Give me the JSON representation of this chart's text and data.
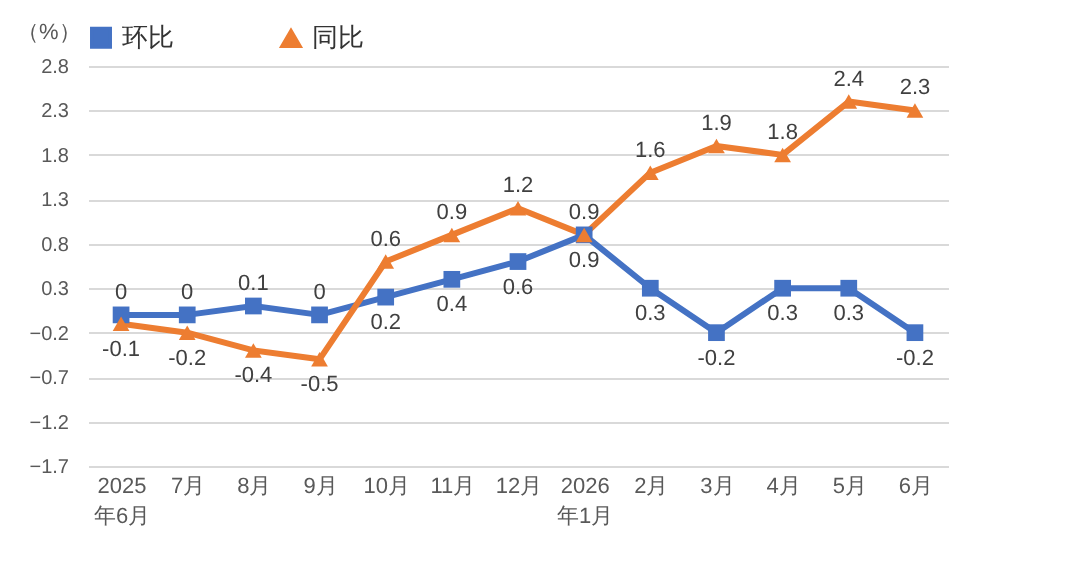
{
  "chart_data": {
    "type": "line",
    "ylabel": "（%）",
    "categories": [
      "2025\n年6月",
      "7月",
      "8月",
      "9月",
      "10月",
      "11月",
      "12月",
      "2026\n年1月",
      "2月",
      "3月",
      "4月",
      "5月",
      "6月"
    ],
    "series": [
      {
        "name": "环比",
        "color": "#4472c4",
        "marker": "square",
        "values": [
          0,
          0,
          0.1,
          0,
          0.2,
          0.4,
          0.6,
          0.9,
          0.3,
          -0.2,
          0.3,
          0.3,
          -0.2
        ]
      },
      {
        "name": "同比",
        "color": "#ed7d31",
        "marker": "triangle",
        "values": [
          -0.1,
          -0.2,
          -0.4,
          -0.5,
          0.6,
          0.9,
          1.2,
          0.9,
          1.6,
          1.9,
          1.8,
          2.4,
          2.3
        ]
      }
    ],
    "ylim": [
      -1.7,
      2.8
    ],
    "yticks": [
      -1.7,
      -1.2,
      -0.7,
      -0.2,
      0.3,
      0.8,
      1.3,
      1.8,
      2.3,
      2.8
    ],
    "grid": "y",
    "legend": "top",
    "data_labels": true
  }
}
